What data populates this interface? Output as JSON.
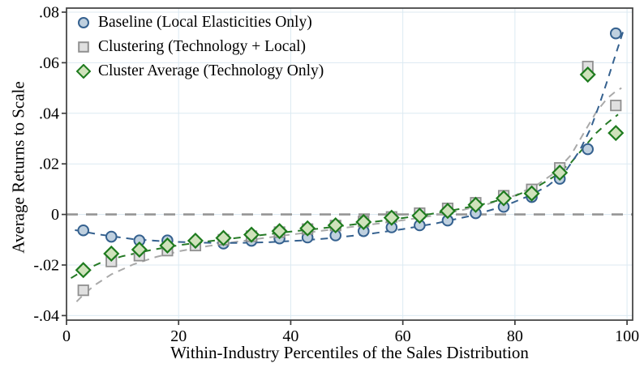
{
  "figure": {
    "x_axis_title": "Within-Industry Percentiles of the Sales Distribution",
    "y_axis_title": "Average Returns to Scale"
  },
  "chart_data": {
    "type": "scatter",
    "title": "",
    "xlabel": "Within-Industry Percentiles of the Sales Distribution",
    "ylabel": "Average Returns to Scale",
    "xlim": [
      0,
      101
    ],
    "ylim": [
      -0.0418,
      0.0816
    ],
    "x_ticks": [
      0,
      20,
      40,
      60,
      80,
      100
    ],
    "x_tick_labels": [
      "0",
      "20",
      "40",
      "60",
      "80",
      "100"
    ],
    "y_ticks": [
      0.08,
      0.06,
      0.04,
      0.02,
      0,
      -0.02,
      -0.04
    ],
    "y_tick_labels": [
      ".08",
      ".06",
      ".04",
      ".02",
      "0",
      "-.02",
      "-.04"
    ],
    "grid": true,
    "zero_line": true,
    "legend_position": "top-left-inside",
    "colors": {
      "grid": "#dceaf2",
      "border": "#3d3d3d",
      "zero_line": "#959595",
      "text": "#000000",
      "background": "#ffffff"
    },
    "x": [
      3,
      8,
      13,
      18,
      23,
      28,
      33,
      38,
      43,
      48,
      53,
      58,
      63,
      68,
      73,
      78,
      83,
      88,
      93,
      98
    ],
    "series": [
      {
        "name": "Baseline (Local Elasticities Only)",
        "marker": "circle",
        "stroke": "#35618f",
        "fill": "#bfd0df",
        "line_color": "#35618f",
        "values": [
          -0.0063,
          -0.0088,
          -0.0103,
          -0.0103,
          -0.0107,
          -0.0115,
          -0.0104,
          -0.0095,
          -0.0091,
          -0.0083,
          -0.0066,
          -0.0051,
          -0.0043,
          -0.0024,
          0.0005,
          0.003,
          0.0069,
          0.0141,
          0.0258,
          0.0716
        ],
        "trend": [
          [
            1.5,
            -0.0062
          ],
          [
            6,
            -0.008
          ],
          [
            12,
            -0.0098
          ],
          [
            18,
            -0.0107
          ],
          [
            24,
            -0.0112
          ],
          [
            30,
            -0.0113
          ],
          [
            36,
            -0.011
          ],
          [
            42,
            -0.0103
          ],
          [
            48,
            -0.0092
          ],
          [
            54,
            -0.0077
          ],
          [
            60,
            -0.0058
          ],
          [
            66,
            -0.0035
          ],
          [
            72,
            -0.0006
          ],
          [
            78,
            0.0032
          ],
          [
            83,
            0.0078
          ],
          [
            86,
            0.0115
          ],
          [
            89,
            0.017
          ],
          [
            91.5,
            0.025
          ],
          [
            93.5,
            0.034
          ],
          [
            95,
            0.043
          ],
          [
            96.5,
            0.053
          ],
          [
            98,
            0.0635
          ],
          [
            99.4,
            0.073
          ]
        ]
      },
      {
        "name": "Clustering (Technology + Local)",
        "marker": "square",
        "stroke": "#909090",
        "fill": "#e0e0e0",
        "line_color": "#a9a9a9",
        "values": [
          -0.03,
          -0.0186,
          -0.0163,
          -0.0143,
          -0.0123,
          -0.01,
          -0.0086,
          -0.007,
          -0.0058,
          -0.0044,
          -0.0028,
          -0.001,
          0.0005,
          0.0024,
          0.0046,
          0.0074,
          0.0099,
          0.0184,
          0.0585,
          0.0431
        ],
        "trend": [
          [
            1.8,
            -0.0345
          ],
          [
            3,
            -0.0318
          ],
          [
            5,
            -0.028
          ],
          [
            8,
            -0.0237
          ],
          [
            12,
            -0.0197
          ],
          [
            16,
            -0.0168
          ],
          [
            20,
            -0.0146
          ],
          [
            25,
            -0.0126
          ],
          [
            30,
            -0.0109
          ],
          [
            35,
            -0.0094
          ],
          [
            40,
            -0.008
          ],
          [
            45,
            -0.0066
          ],
          [
            50,
            -0.0052
          ],
          [
            55,
            -0.0038
          ],
          [
            60,
            -0.0023
          ],
          [
            65,
            -0.0006
          ],
          [
            70,
            0.0014
          ],
          [
            75,
            0.004
          ],
          [
            80,
            0.0075
          ],
          [
            84,
            0.0118
          ],
          [
            87,
            0.0163
          ],
          [
            90,
            0.0235
          ],
          [
            92.5,
            0.033
          ],
          [
            94.5,
            0.0405
          ],
          [
            96.5,
            0.046
          ],
          [
            98,
            0.0487
          ],
          [
            99,
            0.05
          ]
        ]
      },
      {
        "name": "Cluster Average (Technology Only)",
        "marker": "diamond",
        "stroke": "#1e7b1e",
        "fill": "#cfe2bb",
        "line_color": "#267a26",
        "values": [
          -0.022,
          -0.0155,
          -0.0139,
          -0.0123,
          -0.0104,
          -0.0093,
          -0.008,
          -0.0066,
          -0.0055,
          -0.0043,
          -0.003,
          -0.0013,
          -0.0005,
          0.0014,
          0.0038,
          0.0064,
          0.0083,
          0.0165,
          0.0553,
          0.0322
        ],
        "trend": [
          [
            0.8,
            -0.0252
          ],
          [
            3,
            -0.0222
          ],
          [
            6,
            -0.0192
          ],
          [
            10,
            -0.0165
          ],
          [
            15,
            -0.0141
          ],
          [
            20,
            -0.0122
          ],
          [
            25,
            -0.0107
          ],
          [
            30,
            -0.0094
          ],
          [
            35,
            -0.0081
          ],
          [
            40,
            -0.0068
          ],
          [
            45,
            -0.0056
          ],
          [
            50,
            -0.0043
          ],
          [
            55,
            -0.0029
          ],
          [
            60,
            -0.0014
          ],
          [
            65,
            0.0002
          ],
          [
            70,
            0.0021
          ],
          [
            75,
            0.0044
          ],
          [
            80,
            0.0073
          ],
          [
            84,
            0.011
          ],
          [
            87,
            0.015
          ],
          [
            90,
            0.0205
          ],
          [
            92.5,
            0.027
          ],
          [
            94.5,
            0.0322
          ],
          [
            96.5,
            0.0362
          ],
          [
            98.4,
            0.0395
          ]
        ]
      }
    ]
  }
}
